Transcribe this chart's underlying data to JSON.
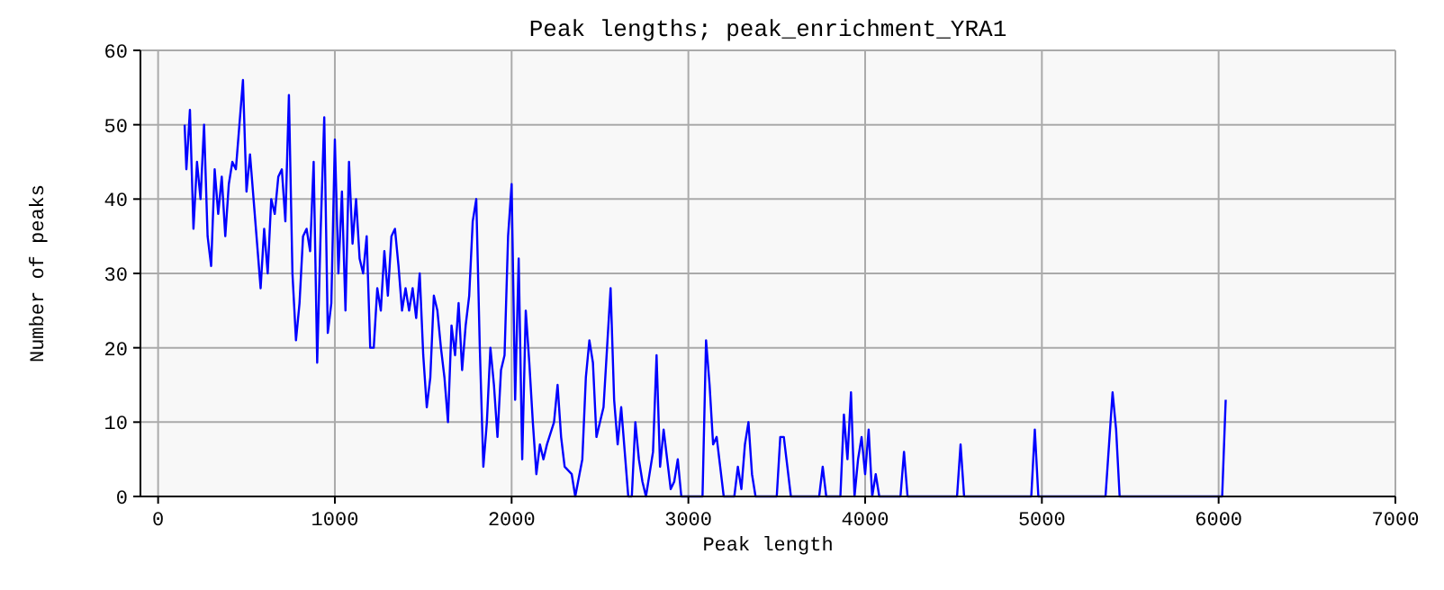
{
  "chart_data": {
    "type": "line",
    "title": "Peak lengths; peak_enrichment_YRA1",
    "xlabel": "Peak length",
    "ylabel": "Number of peaks",
    "xlim": [
      -100,
      7000
    ],
    "ylim": [
      0,
      60
    ],
    "xticks": [
      0,
      1000,
      2000,
      3000,
      4000,
      5000,
      6000,
      7000
    ],
    "yticks": [
      0,
      10,
      20,
      30,
      40,
      50,
      60
    ],
    "grid": true,
    "marker": "none",
    "line_style": "solid",
    "x": [
      150,
      160,
      170,
      180,
      200,
      220,
      240,
      260,
      280,
      300,
      320,
      340,
      360,
      380,
      400,
      420,
      440,
      460,
      480,
      500,
      520,
      540,
      560,
      580,
      600,
      620,
      640,
      660,
      680,
      700,
      720,
      740,
      760,
      780,
      800,
      820,
      840,
      860,
      880,
      900,
      920,
      940,
      960,
      980,
      1000,
      1020,
      1040,
      1060,
      1080,
      1100,
      1120,
      1140,
      1160,
      1180,
      1200,
      1220,
      1240,
      1260,
      1280,
      1300,
      1320,
      1340,
      1360,
      1380,
      1400,
      1420,
      1440,
      1460,
      1480,
      1500,
      1520,
      1540,
      1560,
      1580,
      1600,
      1620,
      1640,
      1660,
      1680,
      1700,
      1720,
      1740,
      1760,
      1780,
      1800,
      1820,
      1840,
      1860,
      1880,
      1900,
      1920,
      1940,
      1960,
      1980,
      2000,
      2020,
      2040,
      2060,
      2080,
      2100,
      2120,
      2140,
      2160,
      2180,
      2200,
      2240,
      2260,
      2280,
      2300,
      2340,
      2360,
      2400,
      2420,
      2440,
      2460,
      2480,
      2500,
      2520,
      2540,
      2560,
      2580,
      2600,
      2620,
      2640,
      2660,
      2680,
      2700,
      2720,
      2740,
      2760,
      2800,
      2820,
      2840,
      2860,
      2880,
      2900,
      2920,
      2940,
      2960,
      3080,
      3100,
      3120,
      3140,
      3160,
      3180,
      3200,
      3260,
      3280,
      3300,
      3320,
      3340,
      3360,
      3380,
      3500,
      3520,
      3540,
      3560,
      3580,
      3740,
      3760,
      3780,
      3860,
      3880,
      3900,
      3920,
      3940,
      3960,
      3980,
      4000,
      4020,
      4040,
      4060,
      4080,
      4200,
      4220,
      4240,
      4520,
      4540,
      4560,
      4940,
      4960,
      4980,
      5360,
      5380,
      5400,
      5420,
      5440,
      6020,
      6040
    ],
    "series": [
      {
        "color": "#0000ff",
        "values": [
          50,
          44,
          48,
          52,
          36,
          45,
          40,
          50,
          35,
          31,
          44,
          38,
          43,
          35,
          42,
          45,
          44,
          50,
          56,
          41,
          46,
          40,
          34,
          28,
          36,
          30,
          40,
          38,
          43,
          44,
          37,
          54,
          30,
          21,
          26,
          35,
          36,
          33,
          45,
          18,
          36,
          51,
          22,
          26,
          48,
          30,
          41,
          25,
          45,
          34,
          40,
          32,
          30,
          35,
          20,
          20,
          28,
          25,
          33,
          27,
          35,
          36,
          31,
          25,
          28,
          25,
          28,
          24,
          30,
          19,
          12,
          16,
          27,
          25,
          20,
          16,
          10,
          23,
          19,
          26,
          17,
          23,
          27,
          37,
          40,
          20,
          4,
          10,
          20,
          15,
          8,
          17,
          19,
          35,
          42,
          13,
          32,
          5,
          25,
          18,
          10,
          3,
          7,
          5,
          7,
          10,
          15,
          8,
          4,
          3,
          0,
          5,
          16,
          21,
          18,
          8,
          10,
          12,
          20,
          28,
          13,
          7,
          12,
          6,
          0,
          0,
          10,
          5,
          2,
          0,
          6,
          19,
          4,
          9,
          5,
          1,
          2,
          5,
          0,
          0,
          21,
          15,
          7,
          8,
          4,
          0,
          0,
          4,
          1,
          7,
          10,
          3,
          0,
          0,
          8,
          8,
          4,
          0,
          0,
          4,
          0,
          0,
          11,
          5,
          14,
          0,
          5,
          8,
          3,
          9,
          0,
          3,
          0,
          0,
          6,
          0,
          0,
          7,
          0,
          0,
          9,
          0,
          0,
          7,
          14,
          9,
          0,
          0,
          13
        ]
      }
    ]
  }
}
